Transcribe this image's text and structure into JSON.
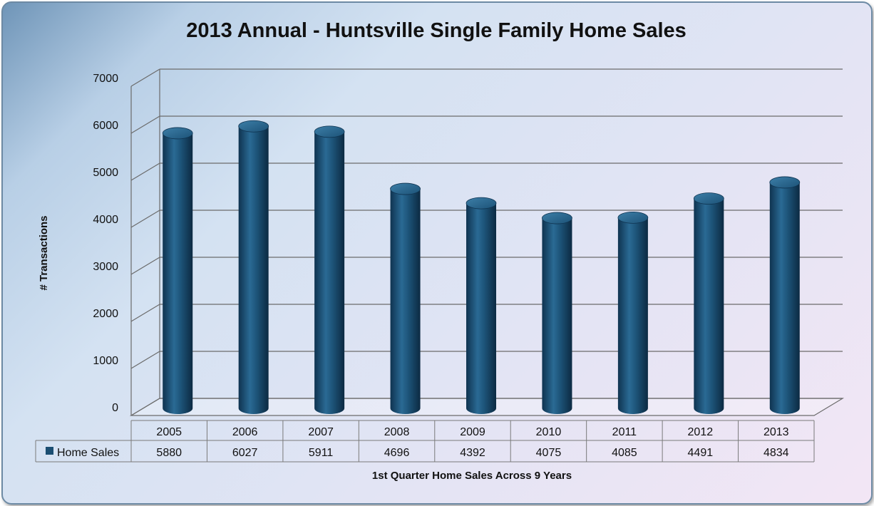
{
  "chart_data": {
    "type": "bar",
    "title": "2013 Annual - Huntsville Single Family Home Sales",
    "xlabel": "1st Quarter Home Sales Across 9 Years",
    "ylabel": "# Transactions",
    "ylim": [
      0,
      7000
    ],
    "y_ticks": [
      "0",
      "1000",
      "2000",
      "3000",
      "4000",
      "5000",
      "6000",
      "7000"
    ],
    "categories": [
      "2005",
      "2006",
      "2007",
      "2008",
      "2009",
      "2010",
      "2011",
      "2012",
      "2013"
    ],
    "series": [
      {
        "name": "Home Sales",
        "values": [
          5880,
          6027,
          5911,
          4696,
          4392,
          4075,
          4085,
          4491,
          4834
        ],
        "value_labels": [
          "5880",
          "6027",
          "5911",
          "4696",
          "4392",
          "4075",
          "4085",
          "4491",
          "4834"
        ],
        "color": "#1b4e72"
      }
    ],
    "grid": true,
    "legend": "data-table",
    "style": "3d-cylinder"
  }
}
